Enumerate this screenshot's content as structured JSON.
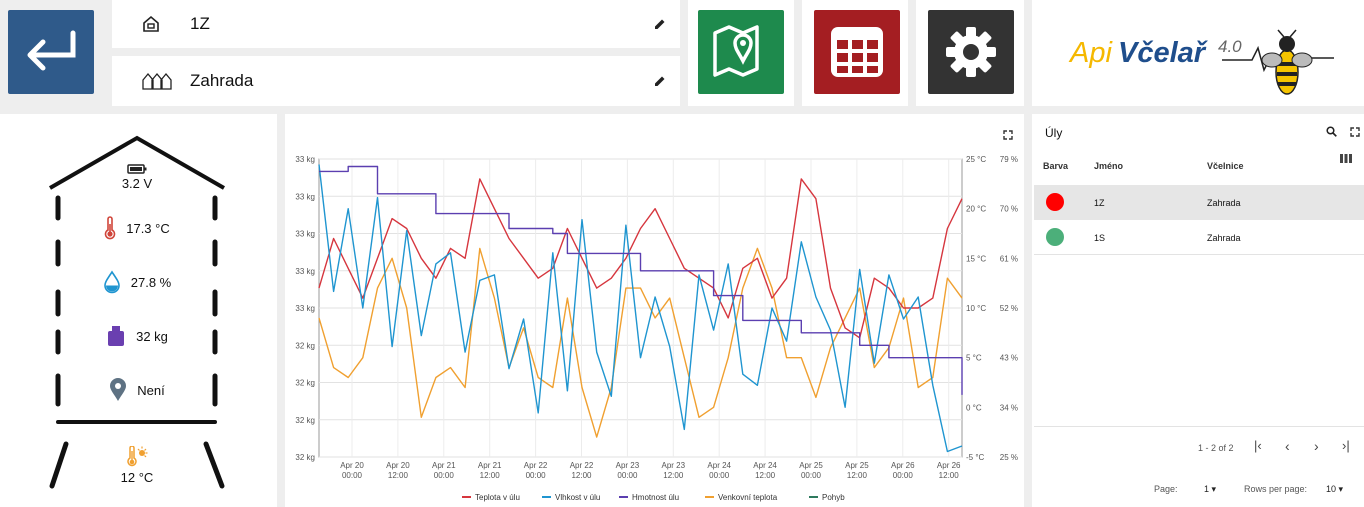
{
  "header": {
    "hive_name": "1Z",
    "site_name": "Zahrada",
    "logo": {
      "prefix": "Api",
      "name": "Včelař",
      "version": "4.0"
    },
    "colors": {
      "back": "#2f5a8a",
      "map": "#1e8a4d",
      "table": "#a41e22",
      "settings": "#333333",
      "logo_yellow": "#f5b800",
      "logo_blue": "#1f4e8c"
    }
  },
  "hive": {
    "battery": "3.2 V",
    "temperature": "17.3 °C",
    "humidity": "27.8 %",
    "weight": "32 kg",
    "location": "Není",
    "outside_temp": "12 °C"
  },
  "chart_data": {
    "type": "line",
    "x_ticks": [
      [
        "Apr 20",
        "00:00"
      ],
      [
        "Apr 20",
        "12:00"
      ],
      [
        "Apr 21",
        "00:00"
      ],
      [
        "Apr 21",
        "12:00"
      ],
      [
        "Apr 22",
        "00:00"
      ],
      [
        "Apr 22",
        "12:00"
      ],
      [
        "Apr 23",
        "00:00"
      ],
      [
        "Apr 23",
        "12:00"
      ],
      [
        "Apr 24",
        "00:00"
      ],
      [
        "Apr 24",
        "12:00"
      ],
      [
        "Apr 25",
        "00:00"
      ],
      [
        "Apr 25",
        "12:00"
      ],
      [
        "Apr 26",
        "00:00"
      ],
      [
        "Apr 26",
        "12:00"
      ]
    ],
    "y_left_ticks": [
      "33 kg",
      "33 kg",
      "33 kg",
      "33 kg",
      "33 kg",
      "32 kg",
      "32 kg",
      "32 kg",
      "32 kg"
    ],
    "y_temp_ticks": [
      "25 °C",
      "20 °C",
      "15 °C",
      "10 °C",
      "5 °C",
      "0 °C",
      "-5 °C"
    ],
    "y_hum_ticks": [
      "79 %",
      "70 %",
      "61 %",
      "52 %",
      "43 %",
      "34 %",
      "25 %"
    ],
    "temp_range": [
      -5,
      25
    ],
    "hum_range": [
      25,
      79
    ],
    "weight_range": [
      31.8,
      33.0
    ],
    "series": [
      {
        "name": "Teplota v úlu",
        "color": "#d6363e",
        "axis": "temp",
        "values": [
          12,
          17,
          14,
          11,
          15,
          19,
          18,
          15,
          13,
          16,
          15,
          23,
          20,
          17,
          15,
          13,
          14,
          18,
          15,
          12,
          13,
          15,
          18,
          20,
          17,
          14,
          13,
          12,
          9,
          14,
          15,
          11,
          13,
          23,
          21,
          12,
          8,
          7,
          13,
          12,
          10,
          10,
          11,
          18,
          21
        ]
      },
      {
        "name": "Vlhkost v úlu",
        "color": "#1f95d0",
        "axis": "hum",
        "values": [
          78,
          55,
          70,
          52,
          72,
          45,
          66,
          47,
          60,
          62,
          44,
          57,
          58,
          41,
          50,
          33,
          62,
          37,
          68,
          44,
          36,
          67,
          43,
          54,
          45,
          30,
          58,
          48,
          60,
          40,
          38,
          52,
          46,
          64,
          54,
          48,
          34,
          59,
          42,
          58,
          50,
          54,
          38,
          26,
          27
        ]
      },
      {
        "name": "Hmotnost úlu",
        "color": "#5b3fb0",
        "axis": "weight",
        "values": [
          32.95,
          32.95,
          32.97,
          32.97,
          32.86,
          32.86,
          32.86,
          32.86,
          32.78,
          32.78,
          32.78,
          32.78,
          32.78,
          32.72,
          32.72,
          32.72,
          32.7,
          32.62,
          32.62,
          32.62,
          32.62,
          32.62,
          32.55,
          32.55,
          32.55,
          32.55,
          32.55,
          32.45,
          32.45,
          32.35,
          32.35,
          32.35,
          32.35,
          32.3,
          32.3,
          32.3,
          32.3,
          32.25,
          32.25,
          32.2,
          32.2,
          32.2,
          32.2,
          32.2,
          32.05
        ]
      },
      {
        "name": "Venkovní teplota",
        "color": "#f0a030",
        "axis": "temp",
        "values": [
          9,
          4,
          3,
          5,
          12,
          15,
          10,
          -1,
          3,
          4,
          2,
          16,
          11,
          4,
          8,
          3,
          2,
          11,
          2,
          -3,
          2,
          12,
          12,
          9,
          11,
          5,
          -1,
          0,
          5,
          12,
          16,
          12,
          5,
          5,
          1,
          6,
          9,
          12,
          4,
          6,
          11,
          2,
          3,
          13,
          11
        ]
      },
      {
        "name": "Pohyb",
        "color": "#2e7a5e",
        "axis": "temp",
        "values": []
      }
    ]
  },
  "hives_table": {
    "title": "Úly",
    "columns": [
      "Barva",
      "Jméno",
      "Včelnice"
    ],
    "rows": [
      {
        "color": "#ff0000",
        "name": "1Z",
        "site": "Zahrada"
      },
      {
        "color": "#4caf7a",
        "name": "1S",
        "site": "Zahrada"
      }
    ],
    "pagination": {
      "range": "1 - 2 of 2",
      "page_label": "Page:",
      "page": "1",
      "rows_label": "Rows per page:",
      "rows_per_page": "10"
    }
  }
}
